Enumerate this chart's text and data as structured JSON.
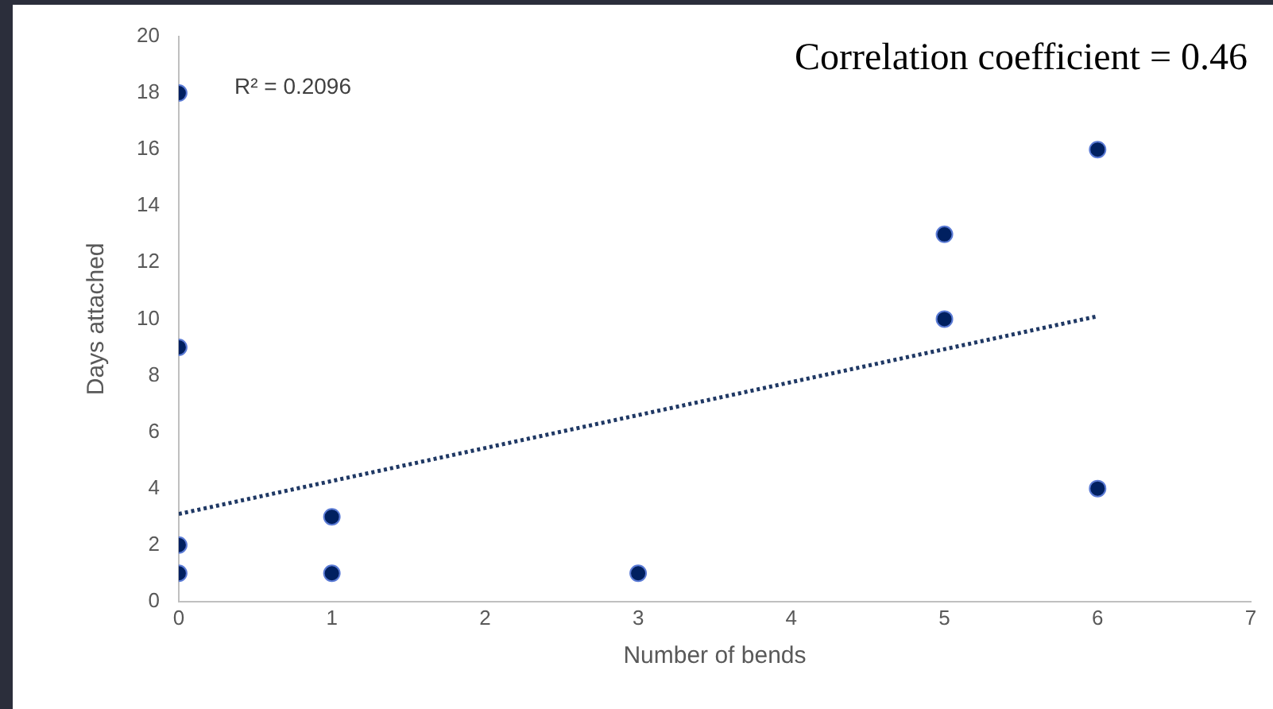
{
  "chart_data": {
    "type": "scatter",
    "xlabel": "Number of bends",
    "ylabel": "Days attached",
    "xlim": [
      0,
      7
    ],
    "xticks": [
      0,
      1,
      2,
      3,
      4,
      5,
      6,
      7
    ],
    "ylim": [
      0,
      20
    ],
    "yticks": [
      0,
      2,
      4,
      6,
      8,
      10,
      12,
      14,
      16,
      18,
      20
    ],
    "grid": false,
    "legend": false,
    "series": [
      {
        "color": "#002060",
        "marker": "circle",
        "x": [
          0,
          0,
          0,
          0,
          1,
          1,
          3,
          5,
          5,
          6,
          6
        ],
        "values": [
          18,
          9,
          2,
          1,
          3,
          1,
          1,
          13,
          10,
          16,
          4
        ]
      },
      {
        "type": "line",
        "color": "#1f3864",
        "marker": "none",
        "line_style": "dotted",
        "x": [
          0,
          6
        ],
        "values": [
          3.1,
          10.1
        ]
      }
    ],
    "annotations": [
      "R² = 0.2096",
      "Correlation coefficient = 0.46"
    ]
  }
}
